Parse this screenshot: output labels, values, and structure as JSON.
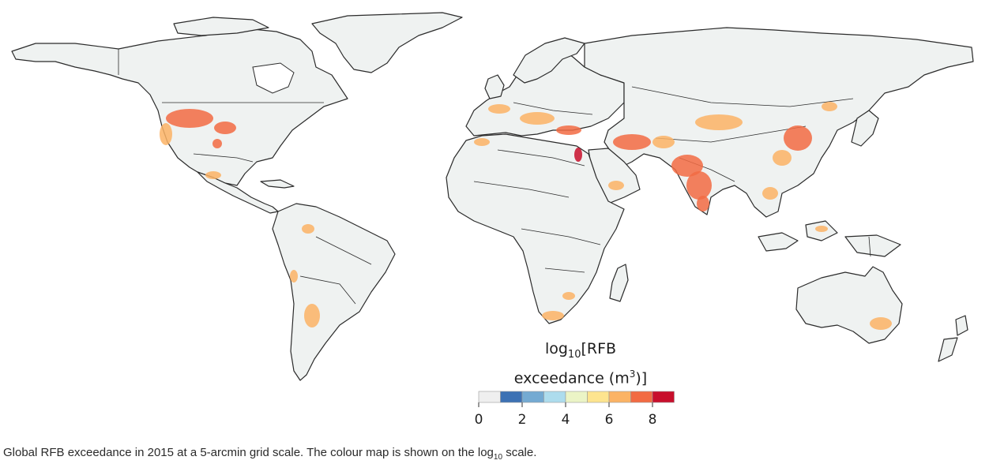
{
  "legend": {
    "title_prefix": "log",
    "title_sub": "10",
    "title_line1_rest": "[RFB",
    "title_line2": "exceedance (m",
    "title_sup": "3",
    "title_end": ")]",
    "colors": [
      "#efefef",
      "#3d72b4",
      "#74aad2",
      "#addced",
      "#ebf4c6",
      "#fde48f",
      "#fbb365",
      "#f26b43",
      "#c80f2c"
    ],
    "tick_labels": [
      "0",
      "2",
      "4",
      "6",
      "8"
    ]
  },
  "caption": {
    "text_before": "Global RFB exceedance in 2015 at a 5-arcmin grid scale. The colour map is shown on the log",
    "sub": "10",
    "text_after": " scale."
  },
  "map": {
    "land_color": "#eff2f1",
    "border_color": "#2b2b2b"
  }
}
